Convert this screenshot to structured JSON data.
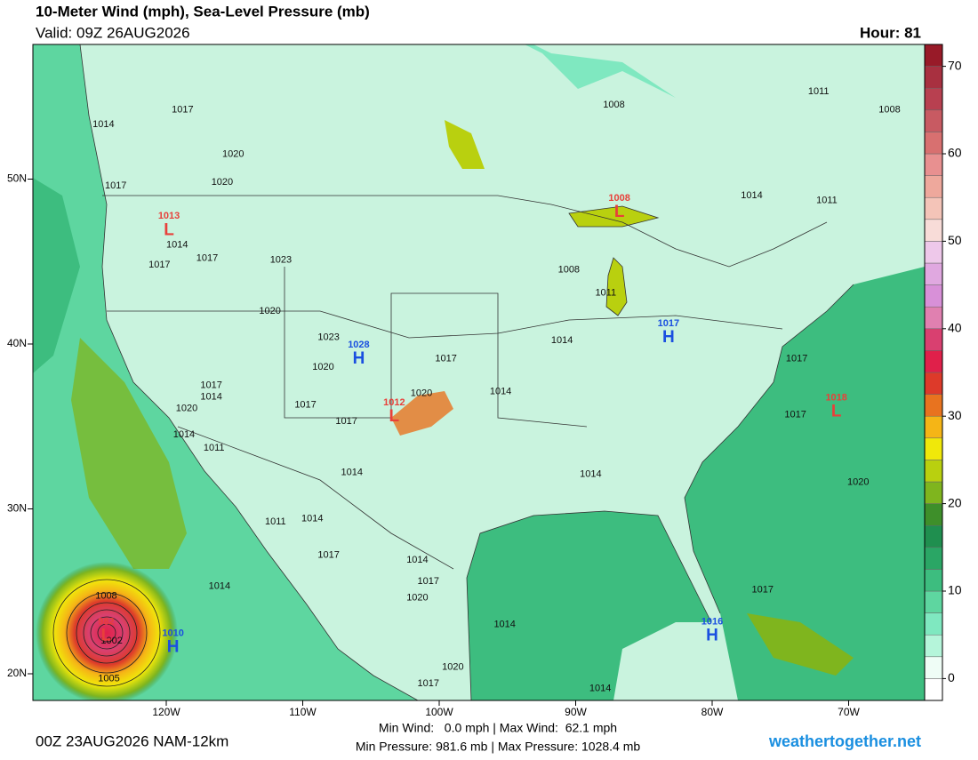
{
  "header": {
    "title": "10-Meter Wind (mph), Sea-Level Pressure (mb)",
    "valid": "Valid: 09Z 26AUG2026",
    "hour": "Hour: 81"
  },
  "footer": {
    "run": "00Z 23AUG2026 NAM-12km",
    "wind": "Min Wind:   0.0 mph | Max Wind:  62.1 mph",
    "pressure": "Min Pressure: 981.6 mb | Max Pressure: 1028.4 mb",
    "site": "weathertogether.net"
  },
  "map": {
    "lon_ticks": [
      {
        "value": -120,
        "label": "120W"
      },
      {
        "value": -110,
        "label": "110W"
      },
      {
        "value": -100,
        "label": "100W"
      },
      {
        "value": -90,
        "label": "90W"
      },
      {
        "value": -80,
        "label": "80W"
      },
      {
        "value": -70,
        "label": "70W"
      }
    ],
    "lat_ticks": [
      {
        "value": 50,
        "label": "50N"
      },
      {
        "value": 40,
        "label": "40N"
      },
      {
        "value": 30,
        "label": "30N"
      },
      {
        "value": 20,
        "label": "20N"
      }
    ],
    "pressure_centers": [
      {
        "symbol": "L",
        "label": 1013,
        "lon": -119.8,
        "lat": 47.1,
        "color": "#e8403a"
      },
      {
        "symbol": "L",
        "label": 1008,
        "lon": -86.8,
        "lat": 48.2,
        "color": "#e8403a"
      },
      {
        "symbol": "H",
        "label": 1017,
        "lon": -83.2,
        "lat": 40.6,
        "color": "#1a4fe0"
      },
      {
        "symbol": "H",
        "label": 1028,
        "lon": -105.9,
        "lat": 39.3,
        "color": "#1a4fe0"
      },
      {
        "symbol": "L",
        "label": 1012,
        "lon": -103.3,
        "lat": 35.8,
        "color": "#e8403a"
      },
      {
        "symbol": "L",
        "label": 1018,
        "lon": -70.9,
        "lat": 36.1,
        "color": "#e8403a"
      },
      {
        "symbol": "H",
        "label": 1010,
        "lon": -119.5,
        "lat": 21.8,
        "color": "#1a4fe0"
      },
      {
        "symbol": "H",
        "label": 1016,
        "lon": -80.0,
        "lat": 22.5,
        "color": "#1a4fe0"
      },
      {
        "symbol": "L",
        "label": 982,
        "lon": -124.4,
        "lat": 22.5,
        "color": "#e8403a"
      }
    ],
    "isobar_labels": [
      {
        "label": 1014,
        "lon": -124.6,
        "lat": 53.3
      },
      {
        "label": 1017,
        "lon": -118.8,
        "lat": 54.2
      },
      {
        "label": 1020,
        "lon": -115.1,
        "lat": 51.5
      },
      {
        "label": 1020,
        "lon": -115.9,
        "lat": 49.8
      },
      {
        "label": 1017,
        "lon": -123.7,
        "lat": 49.6
      },
      {
        "label": 1014,
        "lon": -119.2,
        "lat": 46.0
      },
      {
        "label": 1017,
        "lon": -120.5,
        "lat": 44.8
      },
      {
        "label": 1017,
        "lon": -117.0,
        "lat": 45.2
      },
      {
        "label": 1023,
        "lon": -111.6,
        "lat": 45.1
      },
      {
        "label": 1020,
        "lon": -112.4,
        "lat": 42.0
      },
      {
        "label": 1023,
        "lon": -108.1,
        "lat": 40.4
      },
      {
        "label": 1020,
        "lon": -108.5,
        "lat": 38.6
      },
      {
        "label": 1017,
        "lon": -116.7,
        "lat": 37.5
      },
      {
        "label": 1014,
        "lon": -116.7,
        "lat": 36.8
      },
      {
        "label": 1020,
        "lon": -118.5,
        "lat": 36.1
      },
      {
        "label": 1014,
        "lon": -118.7,
        "lat": 34.5
      },
      {
        "label": 1011,
        "lon": -116.5,
        "lat": 33.7
      },
      {
        "label": 1017,
        "lon": -109.8,
        "lat": 36.3
      },
      {
        "label": 1017,
        "lon": -106.8,
        "lat": 35.3
      },
      {
        "label": 1014,
        "lon": -106.4,
        "lat": 32.2
      },
      {
        "label": 1017,
        "lon": -99.5,
        "lat": 39.1
      },
      {
        "label": 1020,
        "lon": -101.3,
        "lat": 37.0
      },
      {
        "label": 1014,
        "lon": -95.5,
        "lat": 37.1
      },
      {
        "label": 1014,
        "lon": -91.0,
        "lat": 40.2
      },
      {
        "label": 1008,
        "lon": -90.5,
        "lat": 44.5
      },
      {
        "label": 1011,
        "lon": -87.8,
        "lat": 43.1
      },
      {
        "label": 1008,
        "lon": -87.2,
        "lat": 54.5
      },
      {
        "label": 1011,
        "lon": -72.2,
        "lat": 55.3
      },
      {
        "label": 1008,
        "lon": -67.0,
        "lat": 54.2
      },
      {
        "label": 1014,
        "lon": -77.1,
        "lat": 49.0
      },
      {
        "label": 1011,
        "lon": -71.6,
        "lat": 48.7
      },
      {
        "label": 1017,
        "lon": -73.8,
        "lat": 39.1
      },
      {
        "label": 1017,
        "lon": -73.9,
        "lat": 35.7
      },
      {
        "label": 1020,
        "lon": -69.3,
        "lat": 31.6
      },
      {
        "label": 1014,
        "lon": -88.9,
        "lat": 32.1
      },
      {
        "label": 1017,
        "lon": -76.3,
        "lat": 25.1
      },
      {
        "label": 1014,
        "lon": -95.2,
        "lat": 23.0
      },
      {
        "label": 1014,
        "lon": -101.6,
        "lat": 26.9
      },
      {
        "label": 1017,
        "lon": -100.8,
        "lat": 25.6
      },
      {
        "label": 1020,
        "lon": -101.6,
        "lat": 24.6
      },
      {
        "label": 1020,
        "lon": -99.0,
        "lat": 20.4
      },
      {
        "label": 1017,
        "lon": -100.8,
        "lat": 19.4
      },
      {
        "label": 1014,
        "lon": -88.2,
        "lat": 19.1
      },
      {
        "label": 1017,
        "lon": -108.1,
        "lat": 27.2
      },
      {
        "label": 1014,
        "lon": -109.3,
        "lat": 29.4
      },
      {
        "label": 1011,
        "lon": -112.0,
        "lat": 29.2
      },
      {
        "label": 1014,
        "lon": -116.1,
        "lat": 25.3
      },
      {
        "label": 1008,
        "lon": -124.4,
        "lat": 24.7
      },
      {
        "label": 1002,
        "lon": -124.0,
        "lat": 22.0
      },
      {
        "label": 1005,
        "lon": -124.2,
        "lat": 19.7
      }
    ]
  },
  "colorbar": {
    "lim": [
      -2.5,
      72.5
    ],
    "ticks": [
      0,
      10,
      20,
      30,
      40,
      50,
      60,
      70
    ],
    "colors": [
      "#ffffff",
      "#effdf6",
      "#b5f5da",
      "#7fe8c0",
      "#5ed6a0",
      "#3dbd7f",
      "#2aa665",
      "#1f8f4f",
      "#3e8f2a",
      "#7fb51e",
      "#b9d00f",
      "#f0e80a",
      "#f5b516",
      "#e8731f",
      "#dd3a2a",
      "#e0204a",
      "#d94070",
      "#e080b0",
      "#d890d8",
      "#e0a8e0",
      "#eec8ea",
      "#f8dcd8",
      "#f4c4b8",
      "#eea89c",
      "#e89090",
      "#d87070",
      "#c85a62",
      "#b84050",
      "#a83040",
      "#981a28"
    ]
  }
}
